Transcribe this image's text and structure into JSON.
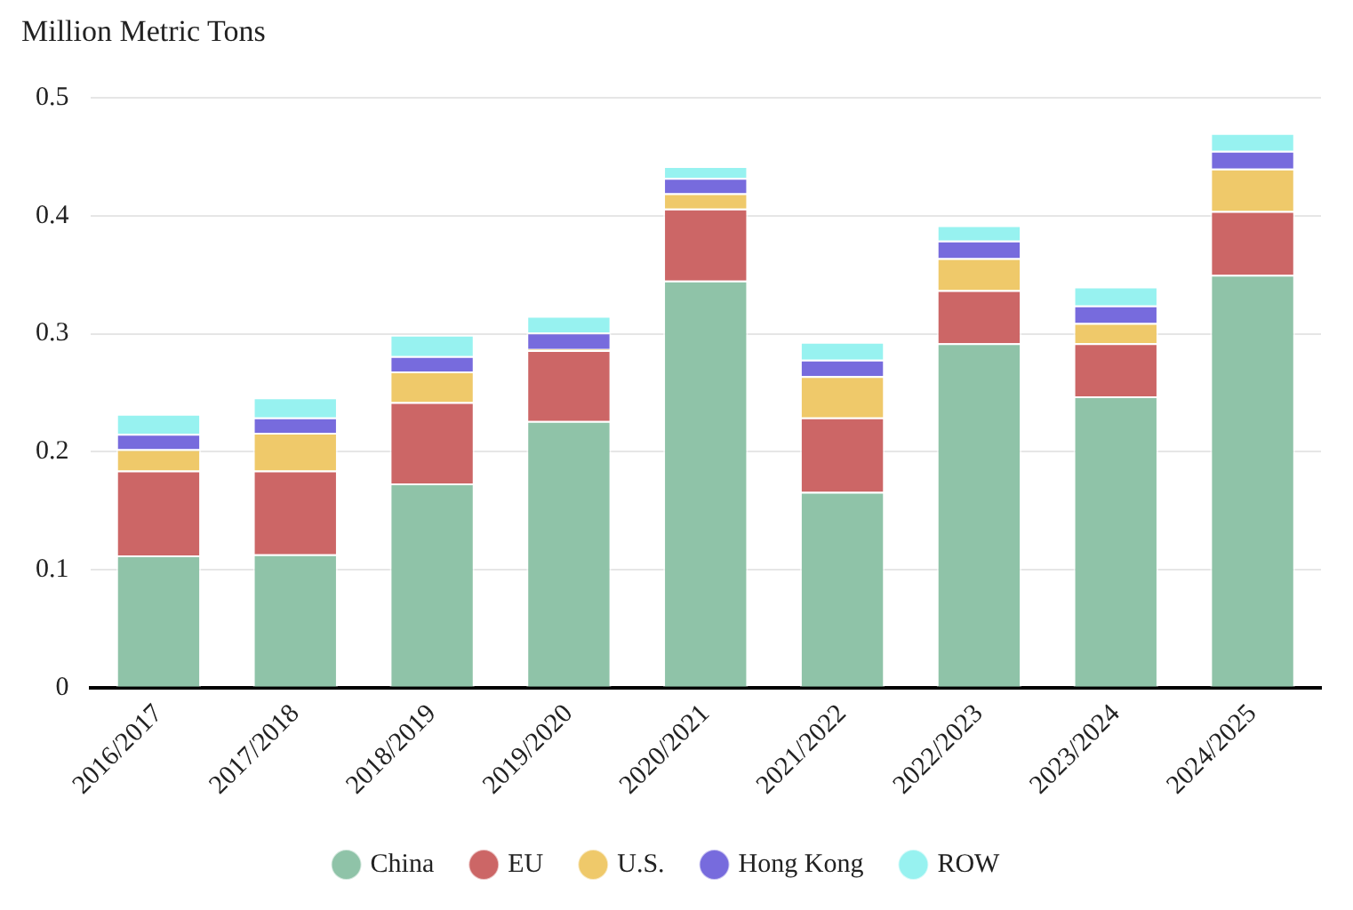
{
  "chart_data": {
    "type": "bar",
    "ylabel": "Million Metric Tons",
    "stacked": true,
    "categories": [
      "2016/2017",
      "2017/2018",
      "2018/2019",
      "2019/2020",
      "2020/2021",
      "2021/2022",
      "2022/2023",
      "2023/2024",
      "2024/2025"
    ],
    "series": [
      {
        "name": "China",
        "color": "#8fc3a8",
        "values": [
          0.112,
          0.113,
          0.173,
          0.226,
          0.345,
          0.166,
          0.292,
          0.247,
          0.35
        ]
      },
      {
        "name": "EU",
        "color": "#cc6666",
        "values": [
          0.072,
          0.071,
          0.069,
          0.06,
          0.061,
          0.063,
          0.045,
          0.045,
          0.054
        ]
      },
      {
        "name": "U.S.",
        "color": "#efc96a",
        "values": [
          0.018,
          0.032,
          0.026,
          0.001,
          0.013,
          0.035,
          0.027,
          0.017,
          0.036
        ]
      },
      {
        "name": "Hong Kong",
        "color": "#776bdd",
        "values": [
          0.013,
          0.013,
          0.013,
          0.014,
          0.013,
          0.014,
          0.015,
          0.015,
          0.015
        ]
      },
      {
        "name": "ROW",
        "color": "#97f2f0",
        "values": [
          0.017,
          0.017,
          0.018,
          0.014,
          0.01,
          0.015,
          0.013,
          0.016,
          0.015
        ]
      }
    ],
    "ylim": [
      0,
      0.5
    ],
    "yticks": [
      0,
      0.1,
      0.2,
      0.3,
      0.4,
      0.5
    ],
    "grid": "y",
    "legend": "bottom"
  }
}
